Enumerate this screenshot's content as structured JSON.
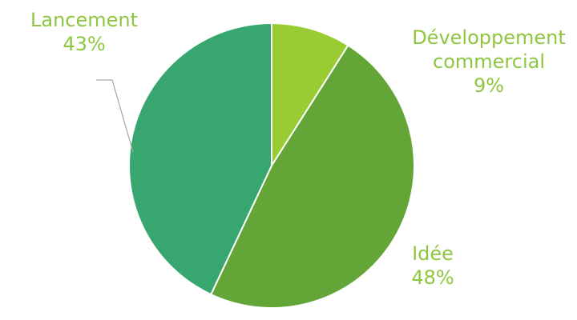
{
  "chart_data": {
    "type": "pie",
    "title": "",
    "slices": [
      {
        "label": "Développement commercial",
        "label_lines": [
          "Développement",
          "commercial"
        ],
        "value": 9,
        "value_label": "9%",
        "color": "#99cc33"
      },
      {
        "label": "Idée",
        "label_lines": [
          "Idée"
        ],
        "value": 48,
        "value_label": "48%",
        "color": "#63a537"
      },
      {
        "label": "Lancement",
        "label_lines": [
          "Lancement"
        ],
        "value": 43,
        "value_label": "43%",
        "color": "#37a76f"
      }
    ],
    "start_angle": "12 o'clock",
    "direction": "clockwise",
    "legend": "none",
    "label_color": "#8dc63f"
  }
}
